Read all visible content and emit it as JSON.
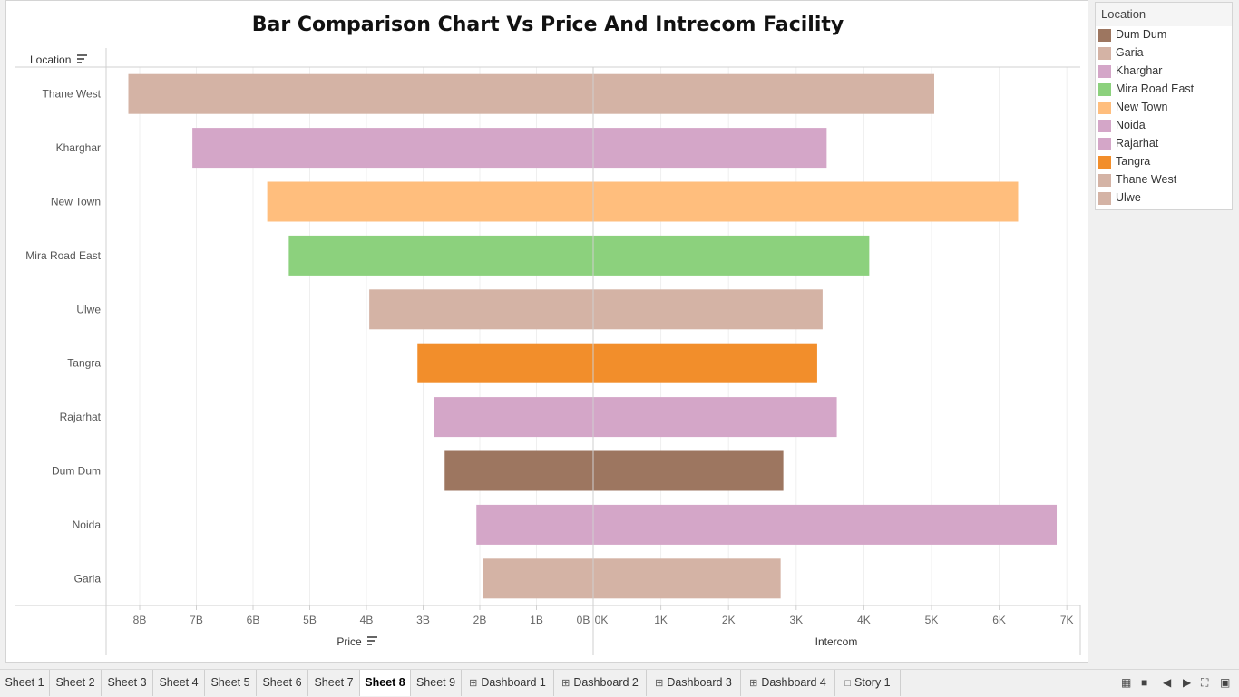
{
  "chart_data": {
    "type": "bar",
    "title": "Bar Comparison Chart Vs Price And Intrecom Facility",
    "row_header": "Location",
    "categories": [
      "Thane West",
      "Kharghar",
      "New Town",
      "Mira Road East",
      "Ulwe",
      "Tangra",
      "Rajarhat",
      "Dum Dum",
      "Noida",
      "Garia"
    ],
    "series": [
      {
        "name": "Price",
        "values": [
          8.2,
          7.07,
          5.75,
          5.37,
          3.95,
          3.1,
          2.81,
          2.62,
          2.06,
          1.94
        ],
        "axis_ticks": [
          "8B",
          "7B",
          "6B",
          "5B",
          "4B",
          "3B",
          "2B",
          "1B",
          "0B"
        ],
        "xlim": [
          0,
          8.5
        ],
        "direction": "reversed"
      },
      {
        "name": "Intercom",
        "values": [
          5040,
          3450,
          6280,
          4080,
          3390,
          3310,
          3600,
          2810,
          6850,
          2770
        ],
        "axis_ticks": [
          "0K",
          "1K",
          "2K",
          "3K",
          "4K",
          "5K",
          "6K",
          "7K"
        ],
        "xlim": [
          0,
          7200
        ]
      }
    ],
    "colors": {
      "Thane West": "#d4b3a5",
      "Kharghar": "#d4a6c8",
      "New Town": "#ffbe7d",
      "Mira Road East": "#8cd17d",
      "Ulwe": "#d4b3a5",
      "Tangra": "#f28e2b",
      "Rajarhat": "#d4a6c8",
      "Dum Dum": "#9d7660",
      "Noida": "#d4a6c8",
      "Garia": "#d4b3a5"
    },
    "grid": true
  },
  "legend": {
    "title": "Location",
    "items": [
      {
        "label": "Dum Dum",
        "color": "#9d7660"
      },
      {
        "label": "Garia",
        "color": "#d4b3a5"
      },
      {
        "label": "Kharghar",
        "color": "#d4a6c8"
      },
      {
        "label": "Mira Road East",
        "color": "#8cd17d"
      },
      {
        "label": "New Town",
        "color": "#ffbe7d"
      },
      {
        "label": "Noida",
        "color": "#d4a6c8"
      },
      {
        "label": "Rajarhat",
        "color": "#d4a6c8"
      },
      {
        "label": "Tangra",
        "color": "#f28e2b"
      },
      {
        "label": "Thane West",
        "color": "#d4b3a5"
      },
      {
        "label": "Ulwe",
        "color": "#d4b3a5"
      }
    ]
  },
  "tabs": [
    {
      "label": "Sheet 1",
      "kind": "sheet"
    },
    {
      "label": "Sheet 2",
      "kind": "sheet"
    },
    {
      "label": "Sheet 3",
      "kind": "sheet"
    },
    {
      "label": "Sheet 4",
      "kind": "sheet"
    },
    {
      "label": "Sheet 5",
      "kind": "sheet"
    },
    {
      "label": "Sheet 6",
      "kind": "sheet"
    },
    {
      "label": "Sheet 7",
      "kind": "sheet"
    },
    {
      "label": "Sheet 8",
      "kind": "sheet",
      "active": true
    },
    {
      "label": "Sheet 9",
      "kind": "sheet"
    },
    {
      "label": "Dashboard 1",
      "kind": "dashboard"
    },
    {
      "label": "Dashboard 2",
      "kind": "dashboard"
    },
    {
      "label": "Dashboard 3",
      "kind": "dashboard"
    },
    {
      "label": "Dashboard 4",
      "kind": "dashboard"
    },
    {
      "label": "Story 1",
      "kind": "story"
    }
  ]
}
